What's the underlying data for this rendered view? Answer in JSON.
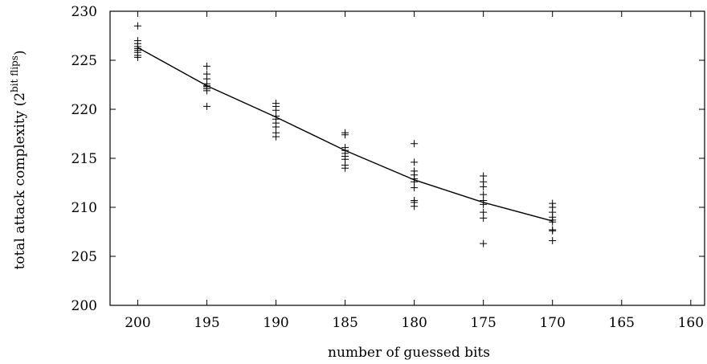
{
  "chart_data": {
    "type": "scatter",
    "xlabel": "number of guessed bits",
    "ylabel_main": "total attack complexity (2",
    "ylabel_sup": "bit flips",
    "ylabel_close": ")",
    "xlim": [
      202,
      159
    ],
    "x_reversed": true,
    "ylim": [
      200,
      230
    ],
    "x_ticks": [
      200,
      195,
      190,
      185,
      180,
      175,
      170,
      165,
      160
    ],
    "y_ticks": [
      200,
      205,
      210,
      215,
      220,
      225,
      230
    ],
    "grid": false,
    "series": [
      {
        "marker": "plus",
        "x": [
          200,
          200,
          200,
          200,
          200,
          200,
          200,
          200,
          200,
          195,
          195,
          195,
          195,
          195,
          195,
          195,
          195,
          195,
          190,
          190,
          190,
          190,
          190,
          190,
          190,
          190,
          190,
          185,
          185,
          185,
          185,
          185,
          185,
          185,
          185,
          185,
          180,
          180,
          180,
          180,
          180,
          180,
          180,
          180,
          180,
          180,
          175,
          175,
          175,
          175,
          175,
          175,
          175,
          175,
          175,
          170,
          170,
          170,
          170,
          170,
          170,
          170,
          170,
          170
        ],
        "y": [
          228.5,
          227.0,
          226.7,
          226.4,
          226.2,
          226.0,
          225.8,
          225.5,
          225.3,
          224.4,
          223.6,
          223.1,
          222.6,
          222.4,
          222.3,
          222.1,
          221.9,
          220.3,
          220.6,
          220.3,
          219.9,
          219.3,
          219.0,
          218.6,
          218.2,
          217.6,
          217.2,
          217.6,
          217.4,
          216.1,
          215.8,
          215.5,
          215.2,
          214.9,
          214.3,
          214.0,
          216.5,
          214.6,
          213.7,
          213.3,
          212.9,
          212.6,
          212.0,
          210.7,
          210.5,
          210.1,
          213.2,
          212.6,
          212.1,
          211.3,
          210.7,
          210.3,
          209.5,
          208.9,
          206.3,
          210.4,
          210.0,
          209.5,
          209.0,
          208.7,
          208.5,
          207.7,
          207.6,
          206.6
        ]
      },
      {
        "marker": "line",
        "x": [
          200,
          195,
          190,
          185,
          180,
          175,
          170
        ],
        "y": [
          226.3,
          222.4,
          219.2,
          215.8,
          212.8,
          210.5,
          208.6
        ]
      }
    ]
  }
}
